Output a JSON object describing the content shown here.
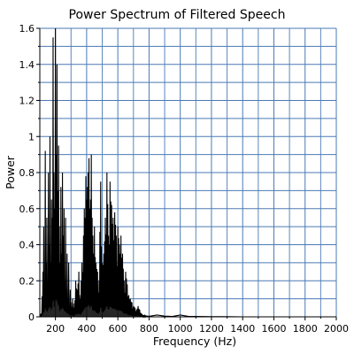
{
  "chart_data": {
    "type": "line",
    "title": "Power Spectrum of Filtered Speech",
    "xlabel": "Frequency (Hz)",
    "ylabel": "Power",
    "xlim": [
      100,
      2000
    ],
    "ylim": [
      0,
      1.6
    ],
    "x_ticks": [
      200,
      400,
      600,
      800,
      1000,
      1200,
      1400,
      1600,
      1800,
      2000
    ],
    "x_tick_labels": [
      "200",
      "400",
      "600",
      "800",
      "1000",
      "1200",
      "1400",
      "1600",
      "1800",
      "2000"
    ],
    "y_ticks": [
      0,
      0.2,
      0.4,
      0.6,
      0.8,
      1,
      1.2,
      1.4,
      1.6
    ],
    "y_tick_labels": [
      "0",
      "0.2",
      "0.4",
      "0.6",
      "0.8",
      "1",
      "1.2",
      "1.4",
      "1.6"
    ],
    "grid": true,
    "colors": {
      "line": "#000000",
      "grid": "#4a7ab4",
      "axis": "#000000"
    },
    "series": [
      {
        "x": [
          100,
          110,
          120,
          125,
          130,
          135,
          140,
          145,
          150,
          155,
          160,
          165,
          170,
          175,
          180,
          185,
          190,
          195,
          200,
          205,
          210,
          215,
          220,
          225,
          230,
          235,
          240,
          245,
          250,
          255,
          260,
          265,
          270,
          275,
          280,
          285,
          290,
          295,
          300,
          310,
          320,
          330,
          340,
          350,
          360,
          370,
          380,
          385,
          390,
          395,
          400,
          405,
          410,
          415,
          420,
          425,
          430,
          435,
          440,
          445,
          450,
          460,
          470,
          480,
          490,
          500,
          510,
          520,
          530,
          540,
          550,
          560,
          570,
          580,
          590,
          600,
          610,
          620,
          630,
          640,
          650,
          660,
          670,
          680,
          690,
          700,
          710,
          720,
          730,
          740,
          750,
          760,
          780,
          800,
          850,
          900,
          950,
          1000,
          1050,
          1100,
          1200,
          1300,
          1400,
          1500,
          1600,
          1700,
          1800,
          1900,
          2000
        ],
        "y": [
          0.0,
          0.02,
          0.25,
          0.5,
          0.1,
          0.92,
          0.3,
          0.55,
          0.15,
          0.8,
          0.4,
          1.0,
          0.3,
          0.65,
          0.55,
          1.55,
          0.8,
          0.6,
          1.6,
          0.9,
          1.4,
          0.7,
          0.95,
          0.5,
          0.3,
          0.72,
          0.35,
          0.8,
          0.45,
          0.6,
          0.2,
          0.55,
          0.15,
          0.35,
          0.1,
          0.3,
          0.05,
          0.15,
          0.08,
          0.1,
          0.05,
          0.2,
          0.15,
          0.25,
          0.1,
          0.3,
          0.45,
          0.6,
          0.55,
          0.78,
          0.65,
          0.72,
          0.8,
          0.88,
          0.6,
          0.65,
          0.9,
          0.55,
          0.45,
          0.35,
          0.5,
          0.3,
          0.25,
          0.2,
          0.75,
          0.3,
          0.35,
          0.55,
          0.8,
          0.45,
          0.75,
          0.62,
          0.55,
          0.58,
          0.45,
          0.5,
          0.4,
          0.45,
          0.35,
          0.2,
          0.25,
          0.18,
          0.12,
          0.1,
          0.08,
          0.06,
          0.05,
          0.04,
          0.06,
          0.04,
          0.02,
          0.01,
          0.005,
          0.003,
          0.01,
          0.004,
          0.002,
          0.01,
          0.003,
          0.002,
          0.001,
          0.001,
          0.0,
          0.0,
          0.0,
          0.0,
          0.0,
          0.0,
          0.0
        ]
      }
    ]
  }
}
